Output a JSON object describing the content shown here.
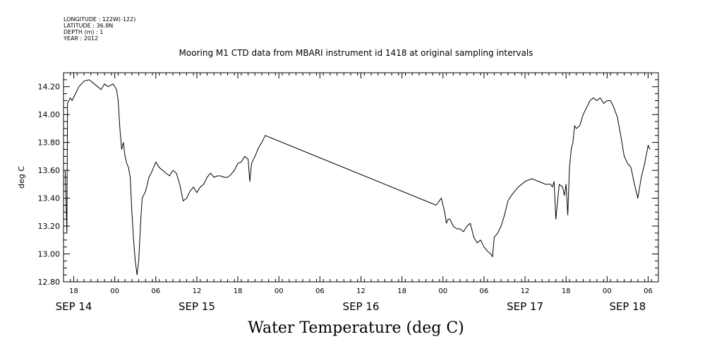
{
  "header": {
    "lines": [
      "LONGITUDE : 122W(-122)",
      "LATITUDE : 36.8N",
      "DEPTH (m) : 1",
      "YEAR : 2012"
    ]
  },
  "chart_data": {
    "type": "line",
    "title": "Mooring M1 CTD data from MBARI instrument id 1418 at original sampling intervals",
    "xlabel": "Water Temperature (deg C)",
    "ylabel": "deg C",
    "ylim": [
      12.8,
      14.3
    ],
    "xlim": [
      "2012-09-14T16:30",
      "2012-09-18T07:30"
    ],
    "grid": false,
    "y_ticks": [
      "12.80",
      "13.00",
      "13.20",
      "13.40",
      "13.60",
      "13.80",
      "14.00",
      "14.20"
    ],
    "x_hour_ticks": [
      {
        "t": "2012-09-14T18:00",
        "label": "18"
      },
      {
        "t": "2012-09-15T00:00",
        "label": "00"
      },
      {
        "t": "2012-09-15T06:00",
        "label": "06"
      },
      {
        "t": "2012-09-15T12:00",
        "label": "12"
      },
      {
        "t": "2012-09-15T18:00",
        "label": "18"
      },
      {
        "t": "2012-09-16T00:00",
        "label": "00"
      },
      {
        "t": "2012-09-16T06:00",
        "label": "06"
      },
      {
        "t": "2012-09-16T12:00",
        "label": "12"
      },
      {
        "t": "2012-09-16T18:00",
        "label": "18"
      },
      {
        "t": "2012-09-17T00:00",
        "label": "00"
      },
      {
        "t": "2012-09-17T06:00",
        "label": "06"
      },
      {
        "t": "2012-09-17T12:00",
        "label": "12"
      },
      {
        "t": "2012-09-17T18:00",
        "label": "18"
      },
      {
        "t": "2012-09-18T00:00",
        "label": "00"
      },
      {
        "t": "2012-09-18T06:00",
        "label": "06"
      }
    ],
    "x_day_labels": [
      {
        "t": "2012-09-14T18:00",
        "label": "SEP 14"
      },
      {
        "t": "2012-09-15T12:00",
        "label": "SEP 15"
      },
      {
        "t": "2012-09-16T12:00",
        "label": "SEP 16"
      },
      {
        "t": "2012-09-17T12:00",
        "label": "SEP 17"
      },
      {
        "t": "2012-09-18T03:00",
        "label": "SEP 18"
      }
    ],
    "series": [
      {
        "color": "#000000",
        "x": [
          "2012-09-14T16:45",
          "2012-09-14T17:00",
          "2012-09-14T17:05",
          "2012-09-14T17:15",
          "2012-09-14T17:30",
          "2012-09-14T17:45",
          "2012-09-14T18:15",
          "2012-09-14T18:45",
          "2012-09-14T19:30",
          "2012-09-14T20:15",
          "2012-09-14T21:00",
          "2012-09-14T21:30",
          "2012-09-14T22:00",
          "2012-09-14T22:30",
          "2012-09-14T23:00",
          "2012-09-14T23:45",
          "2012-09-15T00:15",
          "2012-09-15T00:30",
          "2012-09-15T00:45",
          "2012-09-15T01:00",
          "2012-09-15T01:15",
          "2012-09-15T01:30",
          "2012-09-15T01:45",
          "2012-09-15T02:00",
          "2012-09-15T02:15",
          "2012-09-15T02:30",
          "2012-09-15T02:45",
          "2012-09-15T03:00",
          "2012-09-15T03:15",
          "2012-09-15T03:30",
          "2012-09-15T03:45",
          "2012-09-15T04:00",
          "2012-09-15T04:30",
          "2012-09-15T05:00",
          "2012-09-15T05:30",
          "2012-09-15T06:00",
          "2012-09-15T06:30",
          "2012-09-15T07:00",
          "2012-09-15T07:30",
          "2012-09-15T08:00",
          "2012-09-15T08:30",
          "2012-09-15T09:00",
          "2012-09-15T09:30",
          "2012-09-15T10:00",
          "2012-09-15T10:30",
          "2012-09-15T11:00",
          "2012-09-15T11:30",
          "2012-09-15T12:00",
          "2012-09-15T12:30",
          "2012-09-15T13:00",
          "2012-09-15T13:30",
          "2012-09-15T14:00",
          "2012-09-15T14:30",
          "2012-09-15T15:00",
          "2012-09-15T15:30",
          "2012-09-15T16:00",
          "2012-09-15T16:30",
          "2012-09-15T17:00",
          "2012-09-15T17:30",
          "2012-09-15T18:00",
          "2012-09-15T18:30",
          "2012-09-15T19:00",
          "2012-09-15T19:30",
          "2012-09-15T19:45",
          "2012-09-15T20:00",
          "2012-09-15T20:30",
          "2012-09-15T21:00",
          "2012-09-15T21:30",
          "2012-09-15T22:00",
          "2012-09-15T22:30",
          "2012-09-16T23:00",
          "2012-09-16T23:45",
          "2012-09-17T00:15",
          "2012-09-17T00:30",
          "2012-09-17T00:45",
          "2012-09-17T01:00",
          "2012-09-17T01:30",
          "2012-09-17T02:00",
          "2012-09-17T02:30",
          "2012-09-17T03:00",
          "2012-09-17T03:30",
          "2012-09-17T04:00",
          "2012-09-17T04:30",
          "2012-09-17T05:00",
          "2012-09-17T05:30",
          "2012-09-17T06:00",
          "2012-09-17T06:30",
          "2012-09-17T07:00",
          "2012-09-17T07:15",
          "2012-09-17T07:30",
          "2012-09-17T08:00",
          "2012-09-17T08:30",
          "2012-09-17T09:00",
          "2012-09-17T09:30",
          "2012-09-17T10:00",
          "2012-09-17T10:30",
          "2012-09-17T11:00",
          "2012-09-17T11:30",
          "2012-09-17T12:00",
          "2012-09-17T13:00",
          "2012-09-17T14:00",
          "2012-09-17T15:00",
          "2012-09-17T15:45",
          "2012-09-17T16:00",
          "2012-09-17T16:15",
          "2012-09-17T16:30",
          "2012-09-17T17:00",
          "2012-09-17T17:30",
          "2012-09-17T17:45",
          "2012-09-17T18:00",
          "2012-09-17T18:15",
          "2012-09-17T18:30",
          "2012-09-17T18:45",
          "2012-09-17T19:00",
          "2012-09-17T19:15",
          "2012-09-17T19:30",
          "2012-09-17T20:00",
          "2012-09-17T20:30",
          "2012-09-17T21:00",
          "2012-09-17T21:30",
          "2012-09-17T22:00",
          "2012-09-17T22:30",
          "2012-09-17T23:00",
          "2012-09-17T23:30",
          "2012-09-18T00:00",
          "2012-09-18T00:30",
          "2012-09-18T01:00",
          "2012-09-18T01:30",
          "2012-09-18T02:00",
          "2012-09-18T02:30",
          "2012-09-18T03:00",
          "2012-09-18T03:30",
          "2012-09-18T04:00",
          "2012-09-18T04:30",
          "2012-09-18T05:00",
          "2012-09-18T05:30",
          "2012-09-18T06:00",
          "2012-09-18T06:15"
        ],
        "y": [
          13.6,
          13.15,
          14.08,
          14.1,
          14.12,
          14.1,
          14.15,
          14.2,
          14.24,
          14.25,
          14.22,
          14.2,
          14.18,
          14.22,
          14.2,
          14.22,
          14.18,
          14.1,
          13.9,
          13.75,
          13.8,
          13.7,
          13.65,
          13.62,
          13.55,
          13.3,
          13.1,
          12.95,
          12.85,
          12.95,
          13.2,
          13.4,
          13.45,
          13.55,
          13.6,
          13.66,
          13.62,
          13.6,
          13.58,
          13.56,
          13.6,
          13.58,
          13.5,
          13.38,
          13.4,
          13.45,
          13.48,
          13.44,
          13.48,
          13.5,
          13.55,
          13.58,
          13.55,
          13.56,
          13.56,
          13.55,
          13.55,
          13.57,
          13.6,
          13.65,
          13.66,
          13.7,
          13.68,
          13.52,
          13.65,
          13.7,
          13.76,
          13.8,
          13.85,
          13.84,
          13.35,
          13.4,
          13.3,
          13.22,
          13.25,
          13.25,
          13.2,
          13.18,
          13.18,
          13.16,
          13.2,
          13.22,
          13.12,
          13.08,
          13.1,
          13.05,
          13.02,
          13.0,
          12.98,
          13.12,
          13.15,
          13.2,
          13.28,
          13.38,
          13.42,
          13.45,
          13.48,
          13.5,
          13.52,
          13.54,
          13.52,
          13.5,
          13.5,
          13.48,
          13.52,
          13.25,
          13.5,
          13.48,
          13.42,
          13.5,
          13.28,
          13.62,
          13.75,
          13.8,
          13.92,
          13.9,
          13.92,
          14.0,
          14.05,
          14.1,
          14.12,
          14.1,
          14.12,
          14.08,
          14.1,
          14.1,
          14.05,
          13.98,
          13.85,
          13.7,
          13.65,
          13.62,
          13.5,
          13.4,
          13.55,
          13.65,
          13.78,
          13.75
        ]
      }
    ]
  }
}
